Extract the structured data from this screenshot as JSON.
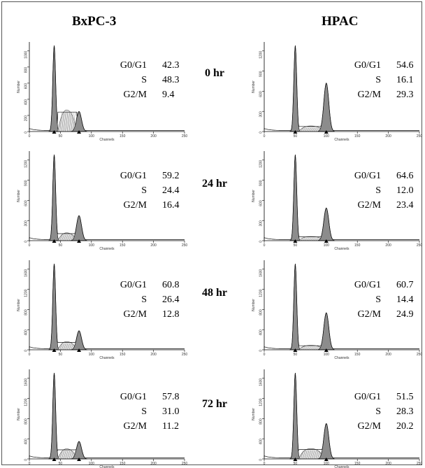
{
  "columns": [
    {
      "label": "BxPC-3"
    },
    {
      "label": "HPAC"
    }
  ],
  "times": [
    "0 hr",
    "24 hr",
    "48 hr",
    "72 hr"
  ],
  "axis": {
    "xlabel": "Channels",
    "ylabel": "Number",
    "xticks": [
      "0",
      "50",
      "100",
      "150",
      "200",
      "250"
    ],
    "xlim": [
      0,
      250
    ]
  },
  "chart_data": [
    {
      "type": "histogram",
      "cell_line": "BxPC-3",
      "time": "0 hr",
      "phases": [
        {
          "name": "G0/G1",
          "value": 42.3
        },
        {
          "name": "S",
          "value": 48.3
        },
        {
          "name": "G2/M",
          "value": 9.4
        }
      ],
      "g1_peak": 40,
      "g2_peak": 80,
      "yticks": [
        "0",
        "200",
        "400",
        "600",
        "800",
        "1000"
      ]
    },
    {
      "type": "histogram",
      "cell_line": "HPAC",
      "time": "0 hr",
      "phases": [
        {
          "name": "G0/G1",
          "value": 54.6
        },
        {
          "name": "S",
          "value": 16.1
        },
        {
          "name": "G2/M",
          "value": 29.3
        }
      ],
      "g1_peak": 50,
      "g2_peak": 100,
      "yticks": [
        "0",
        "300",
        "600",
        "900",
        "1200"
      ]
    },
    {
      "type": "histogram",
      "cell_line": "BxPC-3",
      "time": "24 hr",
      "phases": [
        {
          "name": "G0/G1",
          "value": 59.2
        },
        {
          "name": "S",
          "value": 24.4
        },
        {
          "name": "G2/M",
          "value": 16.4
        }
      ],
      "g1_peak": 40,
      "g2_peak": 80,
      "yticks": [
        "0",
        "300",
        "600",
        "900",
        "1200"
      ]
    },
    {
      "type": "histogram",
      "cell_line": "HPAC",
      "time": "24 hr",
      "phases": [
        {
          "name": "G0/G1",
          "value": 64.6
        },
        {
          "name": "S",
          "value": 12.0
        },
        {
          "name": "G2/M",
          "value": 23.4
        }
      ],
      "g1_peak": 50,
      "g2_peak": 100,
      "yticks": [
        "0",
        "300",
        "600",
        "900",
        "1200"
      ]
    },
    {
      "type": "histogram",
      "cell_line": "BxPC-3",
      "time": "48 hr",
      "phases": [
        {
          "name": "G0/G1",
          "value": 60.8
        },
        {
          "name": "S",
          "value": 26.4
        },
        {
          "name": "G2/M",
          "value": 12.8
        }
      ],
      "g1_peak": 40,
      "g2_peak": 80,
      "yticks": [
        "0",
        "400",
        "800",
        "1200",
        "1600"
      ]
    },
    {
      "type": "histogram",
      "cell_line": "HPAC",
      "time": "48 hr",
      "phases": [
        {
          "name": "G0/G1",
          "value": 60.7
        },
        {
          "name": "S",
          "value": 14.4
        },
        {
          "name": "G2/M",
          "value": 24.9
        }
      ],
      "g1_peak": 50,
      "g2_peak": 100,
      "yticks": [
        "0",
        "400",
        "800",
        "1200",
        "1600"
      ]
    },
    {
      "type": "histogram",
      "cell_line": "BxPC-3",
      "time": "72 hr",
      "phases": [
        {
          "name": "G0/G1",
          "value": 57.8
        },
        {
          "name": "S",
          "value": 31.0
        },
        {
          "name": "G2/M",
          "value": 11.2
        }
      ],
      "g1_peak": 40,
      "g2_peak": 80,
      "yticks": [
        "0",
        "400",
        "800",
        "1200",
        "1600"
      ]
    },
    {
      "type": "histogram",
      "cell_line": "HPAC",
      "time": "72 hr",
      "phases": [
        {
          "name": "G0/G1",
          "value": 51.5
        },
        {
          "name": "S",
          "value": 28.3
        },
        {
          "name": "G2/M",
          "value": 20.2
        }
      ],
      "g1_peak": 50,
      "g2_peak": 100,
      "yticks": [
        "0",
        "400",
        "800",
        "1200",
        "1600"
      ]
    }
  ]
}
